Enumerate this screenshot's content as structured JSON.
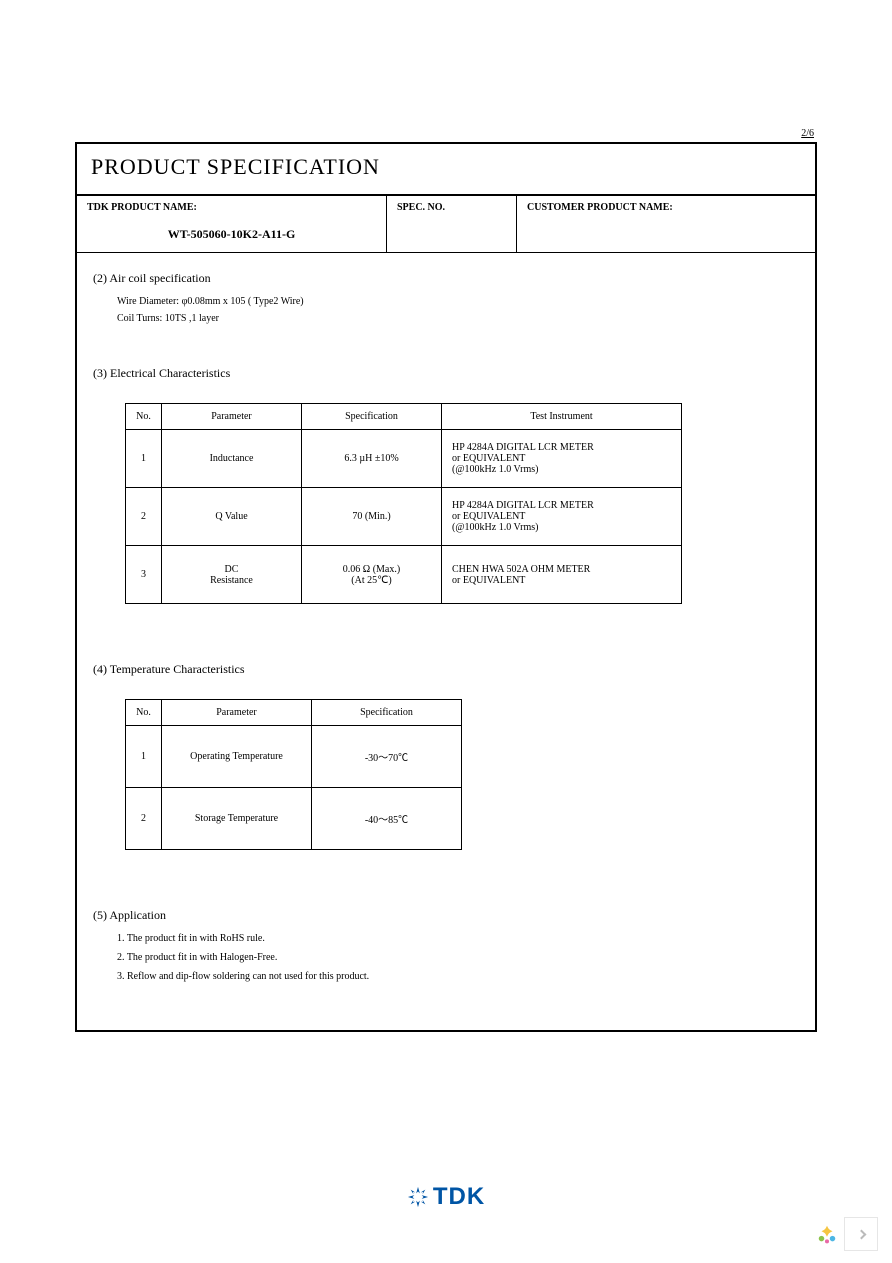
{
  "page_indicator": "2/6",
  "doc_title": "PRODUCT SPECIFICATION",
  "header": {
    "product_label": "TDK PRODUCT NAME:",
    "product_value": "WT-505060-10K2-A11-G",
    "spec_label": "SPEC. NO.",
    "customer_label": "CUSTOMER PRODUCT NAME:"
  },
  "section2": {
    "head": "(2) Air coil specification",
    "line1": "Wire Diameter:  φ0.08mm x 105 ( Type2 Wire)",
    "line2": "Coil Turns: 10TS ,1 layer"
  },
  "section3": {
    "head": "(3)  Electrical Characteristics",
    "cols": {
      "no": "No.",
      "param": "Parameter",
      "spec": "Specification",
      "inst": "Test Instrument"
    },
    "rows": [
      {
        "no": "1",
        "param": "Inductance",
        "spec": "6.3 µH ±10%",
        "inst": "HP 4284A DIGITAL  LCR METER\nor EQUIVALENT\n(@100kHz 1.0 Vrms)"
      },
      {
        "no": "2",
        "param": "Q Value",
        "spec": "70 (Min.)",
        "inst": "HP 4284A DIGITAL  LCR METER\nor EQUIVALENT\n(@100kHz 1.0 Vrms)"
      },
      {
        "no": "3",
        "param": "DC\nResistance",
        "spec": "0.06  Ω (Max.)\n(At 25℃)",
        "inst": "CHEN HWA 502A  OHM METER\nor EQUIVALENT"
      }
    ]
  },
  "section4": {
    "head": "(4)  Temperature Characteristics",
    "cols": {
      "no": "No.",
      "param": "Parameter",
      "spec": "Specification"
    },
    "rows": [
      {
        "no": "1",
        "param": "Operating  Temperature",
        "spec": "-30～70℃"
      },
      {
        "no": "2",
        "param": "Storage  Temperature",
        "spec": "-40～85℃"
      }
    ]
  },
  "section5": {
    "head": "(5)  Application",
    "lines": [
      "1. The product fit in with RoHS rule.",
      "2. The product fit in with Halogen-Free.",
      "3. Reflow and dip-flow soldering can not used for this product."
    ]
  },
  "logo_text": "TDK",
  "colors": {
    "border": "#000000",
    "logo": "#0055a5",
    "bg": "#ffffff"
  }
}
